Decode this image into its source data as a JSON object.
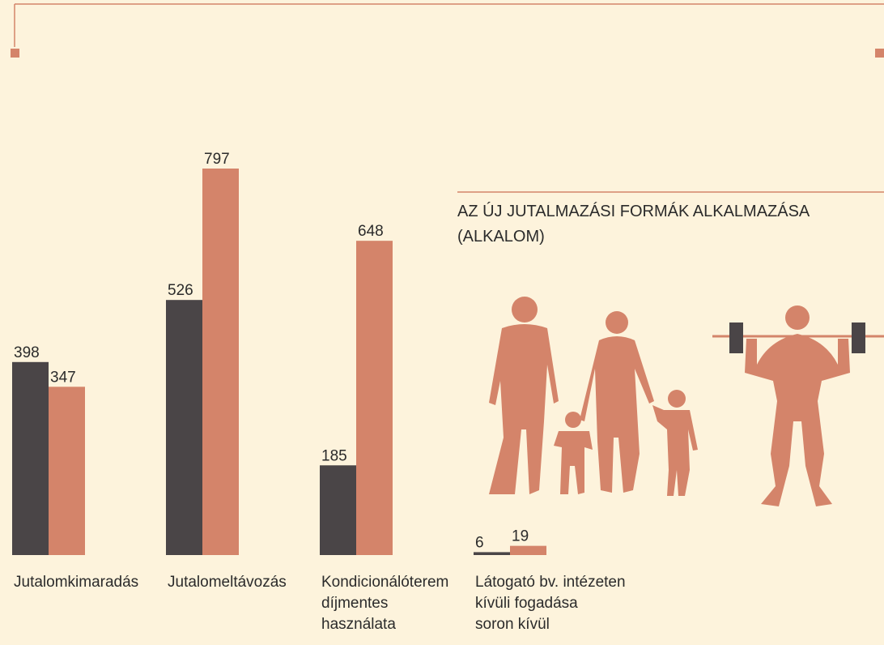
{
  "chart_data": {
    "type": "bar",
    "title": "AZ ÚJ JUTALMAZÁSI FORMÁK ALKALMAZÁSA (ALKALOM)",
    "categories": [
      "Jutalomkimaradás",
      "Jutalomeltávozás",
      "Kondicionálóterem\ndíjmentes\nhasználata",
      "Látogató bv. intézeten\nkívüli fogadása\nsoron kívül"
    ],
    "series": [
      {
        "color": "#4a4547",
        "values": [
          398,
          526,
          185,
          6
        ]
      },
      {
        "color": "#d4846a",
        "values": [
          347,
          797,
          648,
          19
        ]
      }
    ]
  }
}
